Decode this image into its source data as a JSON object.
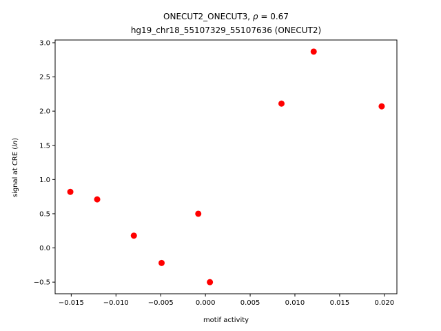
{
  "chart_data": {
    "type": "scatter",
    "title_line1": "ONECUT2_ONECUT3, ",
    "title_rho_symbol": "ρ",
    "title_rho_value": " = 0.67",
    "title_line2": "hg19_chr18_55107329_55107636 (ONECUT2)",
    "xlabel": "motif activity",
    "ylabel_prefix": "signal at CRE (",
    "ylabel_italic": "ln",
    "ylabel_suffix": ")",
    "xlim": [
      -0.0168,
      0.0214
    ],
    "ylim": [
      -0.67,
      3.04
    ],
    "x_ticks": [
      -0.015,
      -0.01,
      -0.005,
      0.0,
      0.005,
      0.01,
      0.015,
      0.02
    ],
    "x_tick_labels": [
      "−0.015",
      "−0.010",
      "−0.005",
      "0.000",
      "0.005",
      "0.010",
      "0.015",
      "0.020"
    ],
    "y_ticks": [
      -0.5,
      0.0,
      0.5,
      1.0,
      1.5,
      2.0,
      2.5,
      3.0
    ],
    "y_tick_labels": [
      "−0.5",
      "0.0",
      "0.5",
      "1.0",
      "1.5",
      "2.0",
      "2.5",
      "3.0"
    ],
    "marker_color": "#ff0000",
    "grid": false,
    "points": [
      {
        "x": -0.0151,
        "y": 0.82
      },
      {
        "x": -0.0121,
        "y": 0.71
      },
      {
        "x": -0.008,
        "y": 0.18
      },
      {
        "x": -0.0049,
        "y": -0.22
      },
      {
        "x": -0.0008,
        "y": 0.5
      },
      {
        "x": 0.0005,
        "y": -0.5
      },
      {
        "x": 0.0085,
        "y": 2.11
      },
      {
        "x": 0.0121,
        "y": 2.87
      },
      {
        "x": 0.0197,
        "y": 2.07
      }
    ]
  }
}
